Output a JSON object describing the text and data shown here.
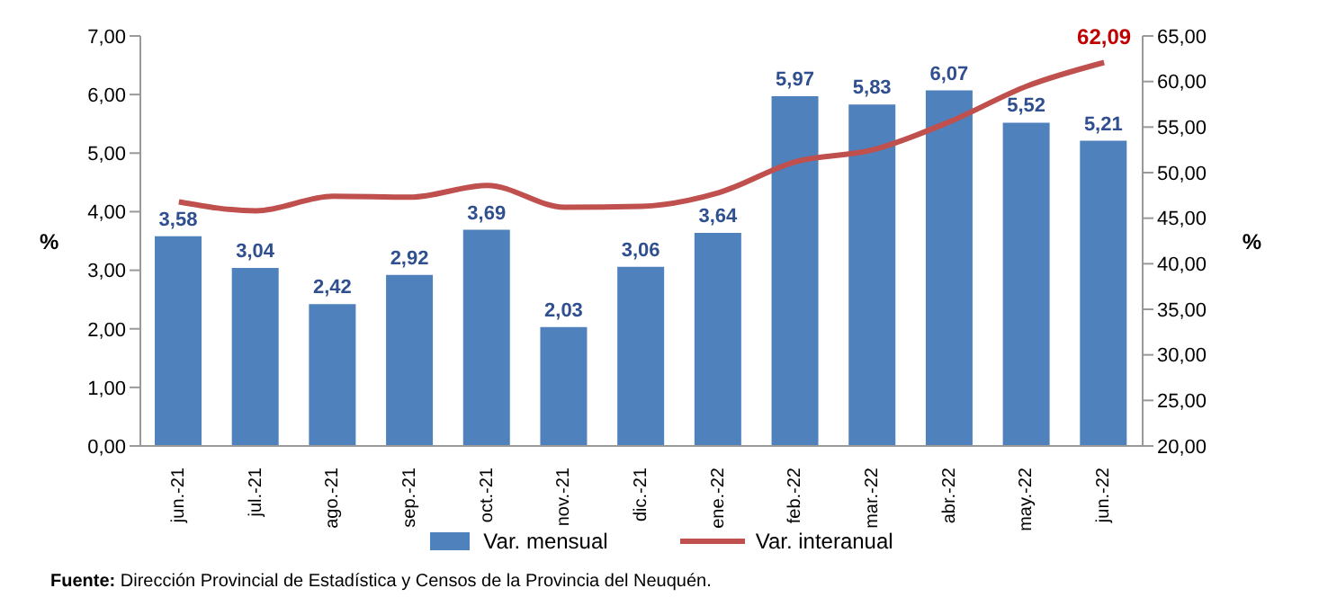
{
  "chart_data": {
    "type": "bar",
    "categories": [
      "jun.-21",
      "jul.-21",
      "ago.-21",
      "sep.-21",
      "oct.-21",
      "nov.-21",
      "dic.-21",
      "ene.-22",
      "feb.-22",
      "mar.-22",
      "abr.-22",
      "may.-22",
      "jun.-22"
    ],
    "series": [
      {
        "name": "Var. mensual",
        "color": "#4f81bd",
        "values": [
          3.58,
          3.04,
          2.42,
          2.92,
          3.69,
          2.03,
          3.06,
          3.64,
          5.97,
          5.83,
          6.07,
          5.52,
          5.21
        ],
        "value_labels": [
          "3,58",
          "3,04",
          "2,42",
          "2,92",
          "3,69",
          "2,03",
          "3,06",
          "3,64",
          "5,97",
          "5,83",
          "6,07",
          "5,52",
          "5,21"
        ]
      },
      {
        "name": "Var. interanual",
        "type": "line",
        "axis": "y2",
        "color": "#c0504d",
        "marker": "none",
        "values": [
          46.8,
          45.8,
          47.4,
          47.3,
          48.6,
          46.2,
          46.3,
          47.8,
          51.2,
          52.5,
          55.6,
          59.5,
          62.09
        ],
        "value_labels": [
          null,
          null,
          null,
          null,
          null,
          null,
          null,
          null,
          null,
          null,
          null,
          null,
          "62,09"
        ]
      }
    ],
    "ylabel": "%",
    "y2label": "%",
    "ylim": [
      0,
      7
    ],
    "yticks": [
      {
        "value": 0,
        "label": "0,00"
      },
      {
        "value": 1,
        "label": "1,00"
      },
      {
        "value": 2,
        "label": "2,00"
      },
      {
        "value": 3,
        "label": "3,00"
      },
      {
        "value": 4,
        "label": "4,00"
      },
      {
        "value": 5,
        "label": "5,00"
      },
      {
        "value": 6,
        "label": "6,00"
      },
      {
        "value": 7,
        "label": "7,00"
      }
    ],
    "y2lim": [
      20,
      65
    ],
    "y2ticks": [
      {
        "value": 20,
        "label": "20,00"
      },
      {
        "value": 25,
        "label": "25,00"
      },
      {
        "value": 30,
        "label": "30,00"
      },
      {
        "value": 35,
        "label": "35,00"
      },
      {
        "value": 40,
        "label": "40,00"
      },
      {
        "value": 45,
        "label": "45,00"
      },
      {
        "value": 50,
        "label": "50,00"
      },
      {
        "value": 55,
        "label": "55,00"
      },
      {
        "value": 60,
        "label": "60,00"
      },
      {
        "value": 65,
        "label": "65,00"
      }
    ],
    "grid": false,
    "legend": "bottom",
    "annotations": [
      "Fuente: Dirección Provincial de Estadística y Censos de la Provincia del Neuquén."
    ]
  }
}
